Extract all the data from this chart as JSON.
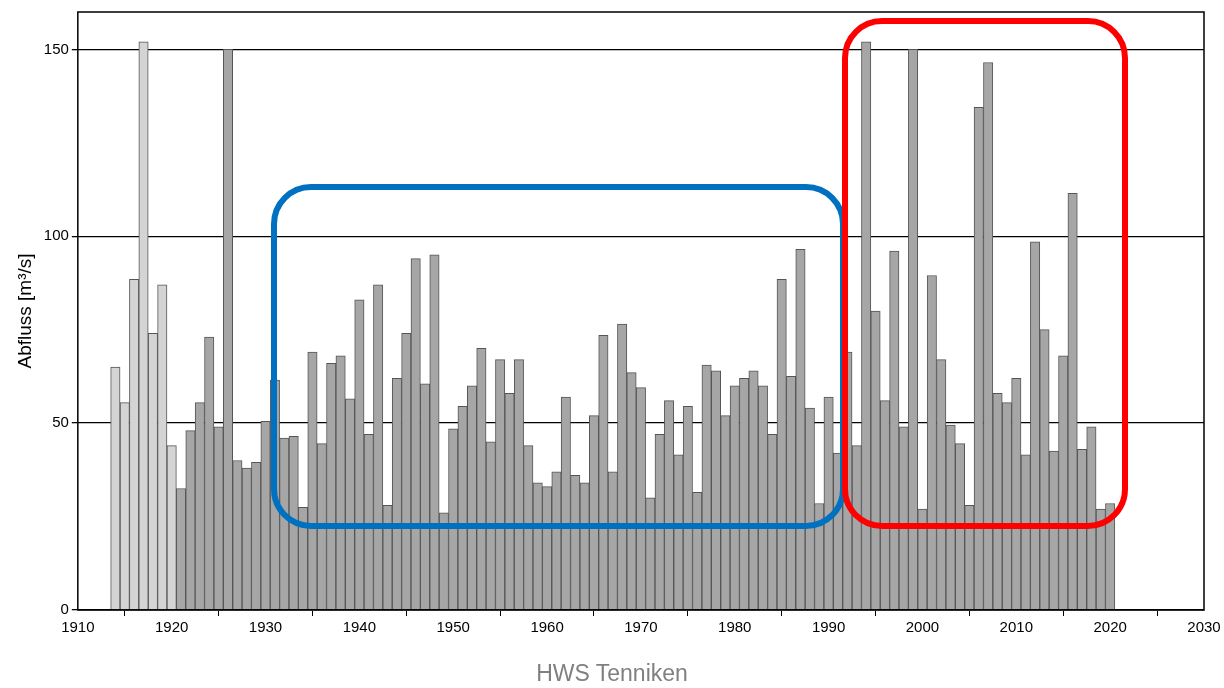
{
  "chart_data": {
    "type": "bar",
    "ylabel": "Abfluss [m³/s]",
    "annotations": [
      "HWS Tenniken"
    ],
    "x": [
      1914,
      1915,
      1916,
      1917,
      1918,
      1919,
      1920,
      1921,
      1922,
      1923,
      1924,
      1925,
      1926,
      1927,
      1928,
      1929,
      1930,
      1931,
      1932,
      1933,
      1934,
      1935,
      1936,
      1937,
      1938,
      1939,
      1940,
      1941,
      1942,
      1943,
      1944,
      1945,
      1946,
      1947,
      1948,
      1949,
      1950,
      1951,
      1952,
      1953,
      1954,
      1955,
      1956,
      1957,
      1958,
      1959,
      1960,
      1961,
      1962,
      1963,
      1964,
      1965,
      1966,
      1967,
      1968,
      1969,
      1970,
      1971,
      1972,
      1973,
      1974,
      1975,
      1976,
      1977,
      1978,
      1979,
      1980,
      1981,
      1982,
      1983,
      1984,
      1985,
      1986,
      1987,
      1988,
      1989,
      1990,
      1991,
      1992,
      1993,
      1994,
      1995,
      1996,
      1997,
      1998,
      1999,
      2000,
      2001,
      2002,
      2003,
      2004,
      2005,
      2006,
      2007,
      2008,
      2009,
      2010,
      2011,
      2012,
      2013,
      2014,
      2015,
      2016,
      2017,
      2018,
      2019,
      2020
    ],
    "values": [
      65,
      55.5,
      88.5,
      152,
      74,
      87,
      44,
      32.5,
      48,
      55.5,
      73,
      49,
      150,
      40,
      38,
      39.5,
      50.5,
      61.5,
      46,
      46.5,
      27.5,
      69,
      44.5,
      66,
      68,
      56.5,
      83,
      47,
      87,
      28,
      62,
      74,
      94,
      60.5,
      95,
      26,
      48.5,
      54.5,
      60,
      70,
      45,
      67,
      58,
      67,
      44,
      34,
      33,
      37,
      57,
      36,
      34,
      52,
      73.5,
      37,
      76.5,
      63.5,
      59.5,
      30,
      47,
      56,
      41.5,
      54.5,
      31.5,
      65.5,
      64,
      52,
      60,
      62,
      64,
      60,
      47,
      88.5,
      62.5,
      96.5,
      54,
      28.5,
      57,
      42,
      69,
      44,
      152,
      80,
      56,
      96,
      49,
      150,
      27,
      89.5,
      67,
      49.5,
      44.5,
      28,
      134.5,
      146.5,
      58,
      55.5,
      62,
      41.5,
      98.5,
      75,
      42.5,
      68,
      111.5,
      43,
      49,
      27,
      28.5
    ],
    "colors": [
      "#d4d4d4",
      "#d4d4d4",
      "#d4d4d4",
      "#d4d4d4",
      "#d4d4d4",
      "#d4d4d4",
      "#d4d4d4",
      "#a6a6a6",
      "#a6a6a6",
      "#a6a6a6",
      "#a6a6a6",
      "#a6a6a6",
      "#a6a6a6",
      "#a6a6a6",
      "#a6a6a6",
      "#a6a6a6",
      "#a6a6a6",
      "#a6a6a6",
      "#a6a6a6",
      "#a6a6a6",
      "#a6a6a6",
      "#a6a6a6",
      "#a6a6a6",
      "#a6a6a6",
      "#a6a6a6",
      "#a6a6a6",
      "#a6a6a6",
      "#a6a6a6",
      "#a6a6a6",
      "#a6a6a6",
      "#a6a6a6",
      "#a6a6a6",
      "#a6a6a6",
      "#a6a6a6",
      "#a6a6a6",
      "#a6a6a6",
      "#a6a6a6",
      "#a6a6a6",
      "#a6a6a6",
      "#a6a6a6",
      "#a6a6a6",
      "#a6a6a6",
      "#a6a6a6",
      "#a6a6a6",
      "#a6a6a6",
      "#a6a6a6",
      "#a6a6a6",
      "#a6a6a6",
      "#a6a6a6",
      "#a6a6a6",
      "#a6a6a6",
      "#a6a6a6",
      "#a6a6a6",
      "#a6a6a6",
      "#a6a6a6",
      "#a6a6a6",
      "#a6a6a6",
      "#a6a6a6",
      "#a6a6a6",
      "#a6a6a6",
      "#a6a6a6",
      "#a6a6a6",
      "#a6a6a6",
      "#a6a6a6",
      "#a6a6a6",
      "#a6a6a6",
      "#a6a6a6",
      "#a6a6a6",
      "#a6a6a6",
      "#a6a6a6",
      "#a6a6a6",
      "#a6a6a6",
      "#a6a6a6",
      "#a6a6a6",
      "#a6a6a6",
      "#a6a6a6",
      "#a6a6a6",
      "#a6a6a6",
      "#a6a6a6",
      "#a6a6a6",
      "#a6a6a6",
      "#a6a6a6",
      "#a6a6a6",
      "#a6a6a6",
      "#a6a6a6",
      "#a6a6a6",
      "#a6a6a6",
      "#a6a6a6",
      "#a6a6a6",
      "#a6a6a6",
      "#a6a6a6",
      "#a6a6a6",
      "#a6a6a6",
      "#a6a6a6",
      "#a6a6a6",
      "#a6a6a6",
      "#a6a6a6",
      "#a6a6a6",
      "#a6a6a6",
      "#a6a6a6",
      "#a6a6a6",
      "#a6a6a6",
      "#a6a6a6",
      "#a6a6a6",
      "#a6a6a6",
      "#a6a6a6",
      "#a6a6a6"
    ],
    "xlim": [
      1910,
      2030
    ],
    "xticks": [
      1910,
      1920,
      1930,
      1940,
      1950,
      1960,
      1970,
      1980,
      1990,
      2000,
      2010,
      2020,
      2030
    ],
    "ylim": [
      0,
      160
    ],
    "yticks": [
      0,
      50,
      100,
      150
    ],
    "grid": "y",
    "legend": false
  }
}
